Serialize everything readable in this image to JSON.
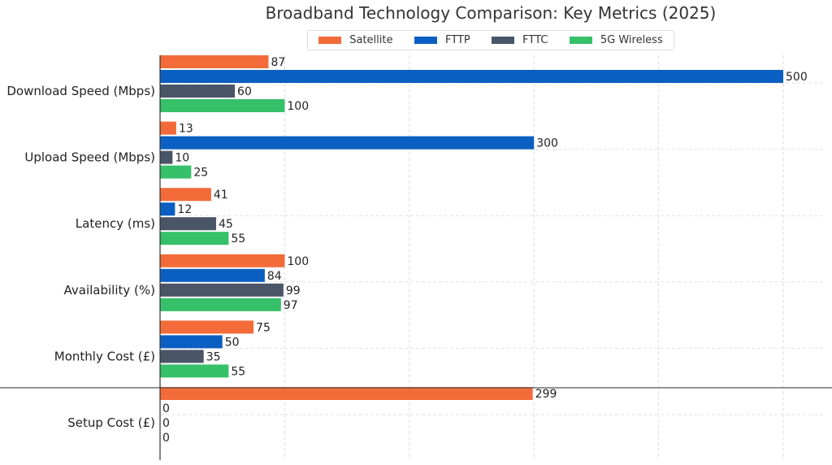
{
  "chart_data": {
    "type": "bar",
    "orientation": "horizontal",
    "title": "Broadband Technology Comparison: Key Metrics (2025)",
    "categories": [
      "Download Speed (Mbps)",
      "Upload Speed (Mbps)",
      "Latency (ms)",
      "Availability (%)",
      "Monthly Cost (£)",
      "Setup Cost (£)"
    ],
    "series": [
      {
        "name": "Satellite",
        "color": "#F26B38",
        "values": [
          87,
          13,
          41,
          100,
          75,
          299
        ]
      },
      {
        "name": "FTTP",
        "color": "#0B5FC2",
        "values": [
          500,
          300,
          12,
          84,
          50,
          0
        ]
      },
      {
        "name": "FTTC",
        "color": "#4A5568",
        "values": [
          60,
          10,
          45,
          99,
          35,
          0
        ]
      },
      {
        "name": "5G Wireless",
        "color": "#35C069",
        "values": [
          100,
          25,
          55,
          97,
          55,
          0
        ]
      }
    ],
    "xlim": [
      0,
      530
    ],
    "grid": true,
    "legend_position": "top-center",
    "data_labels": true
  }
}
